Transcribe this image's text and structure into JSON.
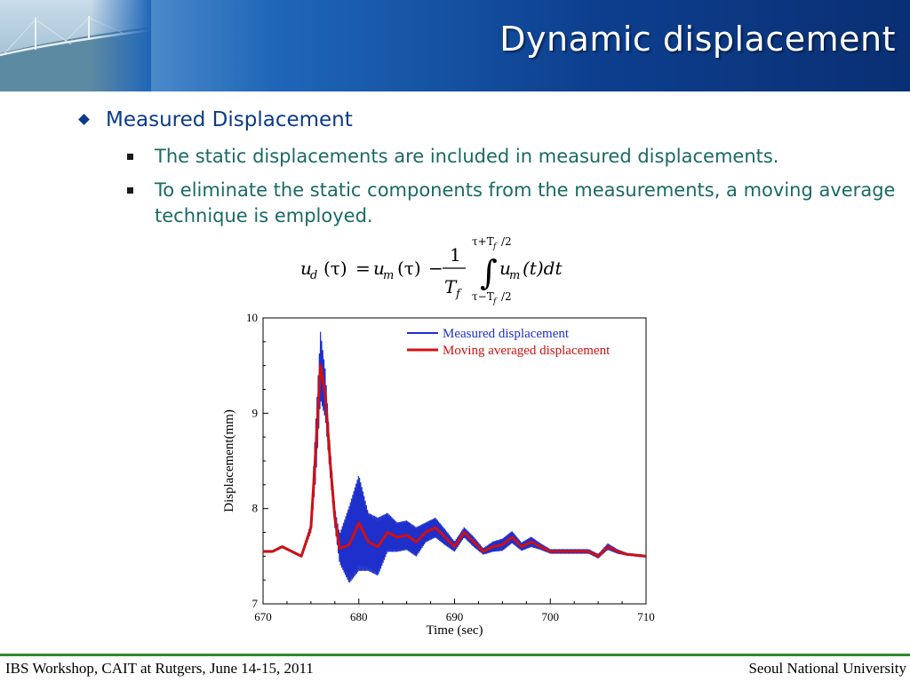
{
  "slide": {
    "title": "Dynamic displacement",
    "bullet": "Measured Displacement",
    "sub_bullets": [
      "The static displacements are included in measured displacements.",
      "To eliminate the static components from the measurements, a moving average technique is employed."
    ]
  },
  "formula": {
    "lhs_u": "u",
    "lhs_sub": "d",
    "lhs_arg": "(τ)",
    "eq": "=",
    "um_u": "u",
    "um_sub": "m",
    "um_arg": "(τ)",
    "minus": "−",
    "frac_num": "1",
    "frac_den": "T",
    "frac_den_sub": "f",
    "integral": "∫",
    "upper_limit": "τ+T",
    "upper_sub": "f",
    "upper_tail": "/2",
    "lower_limit": "τ−T",
    "lower_sub": "f",
    "lower_tail": "/2",
    "int_u": "u",
    "int_sub": "m",
    "int_arg": "(t)dt"
  },
  "chart_data": {
    "type": "line",
    "xlabel": "Time (sec)",
    "ylabel": "Displacement(mm)",
    "xlim": [
      670,
      710
    ],
    "ylim": [
      7,
      10
    ],
    "xticks": [
      670,
      680,
      690,
      700,
      710
    ],
    "yticks": [
      7,
      8,
      9,
      10
    ],
    "legend_position": "top-right",
    "series": [
      {
        "name": "Measured displacement",
        "color": "#1f2fcc",
        "oscillating": true,
        "x": [
          670,
          671,
          672,
          673,
          674,
          675,
          675.5,
          676,
          676.5,
          677,
          677.5,
          678,
          679,
          680,
          681,
          682,
          683,
          684,
          685,
          686,
          687,
          688,
          689,
          690,
          691,
          692,
          693,
          694,
          695,
          696,
          697,
          698,
          699,
          700,
          702,
          704,
          705,
          706,
          707,
          708,
          710
        ],
        "y": [
          7.55,
          7.55,
          7.6,
          7.55,
          7.5,
          7.8,
          8.6,
          9.5,
          9.2,
          8.5,
          7.9,
          7.58,
          7.62,
          7.85,
          7.65,
          7.6,
          7.75,
          7.7,
          7.72,
          7.65,
          7.75,
          7.8,
          7.7,
          7.6,
          7.75,
          7.65,
          7.55,
          7.6,
          7.62,
          7.7,
          7.6,
          7.65,
          7.6,
          7.55,
          7.55,
          7.55,
          7.5,
          7.6,
          7.55,
          7.52,
          7.5
        ],
        "amplitude": [
          0.01,
          0.01,
          0.01,
          0.01,
          0.01,
          0.05,
          0.3,
          0.35,
          0.25,
          0.15,
          0.1,
          0.15,
          0.4,
          0.5,
          0.3,
          0.3,
          0.2,
          0.15,
          0.15,
          0.15,
          0.1,
          0.1,
          0.08,
          0.05,
          0.05,
          0.05,
          0.03,
          0.05,
          0.06,
          0.06,
          0.04,
          0.05,
          0.03,
          0.02,
          0.02,
          0.02,
          0.02,
          0.03,
          0.02,
          0.01,
          0.01
        ]
      },
      {
        "name": "Moving averaged displacement",
        "color": "#d01010",
        "oscillating": false,
        "x": [
          670,
          671,
          672,
          673,
          674,
          675,
          675.5,
          676,
          676.5,
          677,
          677.5,
          678,
          679,
          680,
          681,
          682,
          683,
          684,
          685,
          686,
          687,
          688,
          689,
          690,
          691,
          692,
          693,
          694,
          695,
          696,
          697,
          698,
          699,
          700,
          702,
          704,
          705,
          706,
          707,
          708,
          710
        ],
        "y": [
          7.55,
          7.55,
          7.6,
          7.55,
          7.5,
          7.8,
          8.6,
          9.5,
          9.2,
          8.5,
          7.9,
          7.58,
          7.62,
          7.85,
          7.65,
          7.6,
          7.75,
          7.7,
          7.72,
          7.65,
          7.75,
          7.8,
          7.7,
          7.6,
          7.75,
          7.65,
          7.55,
          7.6,
          7.62,
          7.7,
          7.6,
          7.65,
          7.6,
          7.55,
          7.55,
          7.55,
          7.5,
          7.6,
          7.55,
          7.52,
          7.5
        ]
      }
    ]
  },
  "footer": {
    "left": "IBS Workshop, CAIT at Rutgers, June 14-15, 2011",
    "right": "Seoul National University"
  },
  "colors": {
    "title_bg": "#0d3f8f",
    "bullet": "#0b3a8c",
    "sub_bullet": "#1a6a64",
    "footer_line": "#2e8b2e"
  }
}
